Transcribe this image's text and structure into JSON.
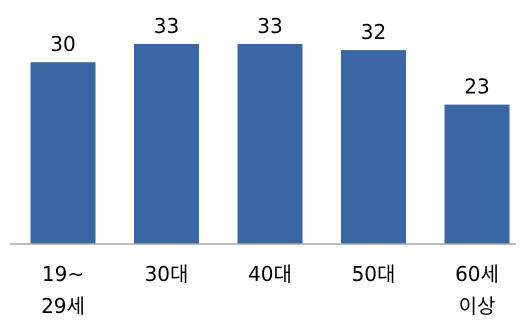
{
  "chart_data": {
    "type": "bar",
    "title": "",
    "xlabel": "",
    "ylabel": "",
    "categories": [
      [
        "19~",
        "29세"
      ],
      [
        "30대"
      ],
      [
        "40대"
      ],
      [
        "50대"
      ],
      [
        "60세",
        "이상"
      ]
    ],
    "values": [
      30,
      33,
      33,
      32,
      23
    ],
    "data_labels": [
      "30",
      "33",
      "33",
      "32",
      "23"
    ],
    "ylim": [
      0,
      33
    ],
    "grid": false,
    "legend": "none",
    "colors": {
      "bar": "#3a66a3",
      "axis": "#a6a6a6",
      "text": "#000000"
    }
  }
}
